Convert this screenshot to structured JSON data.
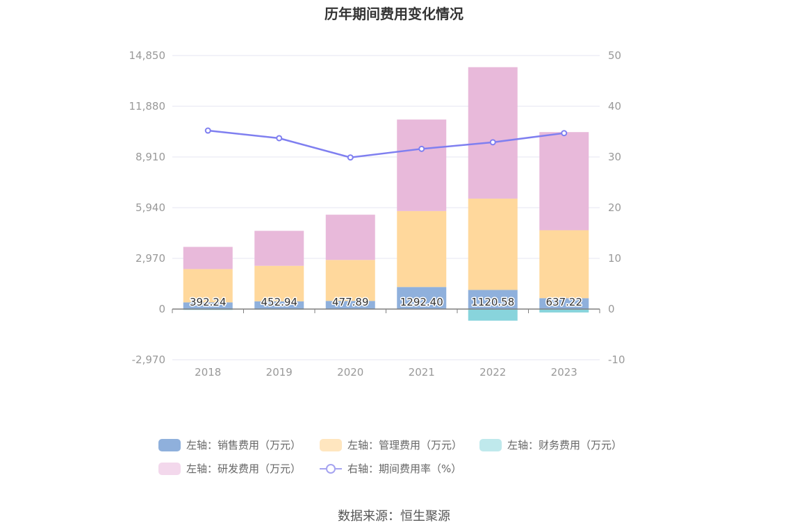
{
  "title": "历年期间费用变化情况",
  "source": "数据来源：恒生聚源",
  "colors": {
    "sales": "#8fb0dc",
    "admin": "#ffd89c",
    "finance": "#88d4dc",
    "rd": "#e8b9da",
    "rate": "#7f7ff0",
    "grid": "#e4e6f2",
    "axis": "#7f7f7f",
    "tick": "#999999"
  },
  "legend": [
    {
      "label": "左轴：销售费用（万元）",
      "swatch": "#8fb0dc",
      "kind": "bar"
    },
    {
      "label": "左轴：管理费用（万元）",
      "swatch": "#ffe6bf",
      "kind": "bar"
    },
    {
      "label": "左轴：财务费用（万元）",
      "swatch": "#bfe9ec",
      "kind": "bar"
    },
    {
      "label": "左轴：研发费用（万元）",
      "swatch": "#f3d8ec",
      "kind": "bar"
    },
    {
      "label": "右轴：期间费用率（%）",
      "swatch": "#a5a3f0",
      "kind": "line"
    }
  ],
  "chart_data": {
    "type": "bar",
    "stacked": true,
    "categories": [
      "2018",
      "2019",
      "2020",
      "2021",
      "2022",
      "2023"
    ],
    "series": [
      {
        "name": "左轴：销售费用（万元）",
        "axis": "left",
        "values": [
          392.24,
          452.94,
          477.89,
          1292.4,
          1120.58,
          637.22
        ],
        "labels": [
          "392.24",
          "452.94",
          "477.89",
          "1292.40",
          "1120.58",
          "637.22"
        ]
      },
      {
        "name": "左轴：管理费用（万元）",
        "axis": "left",
        "values": [
          1950,
          2080,
          2400,
          4450,
          5350,
          3980
        ]
      },
      {
        "name": "左轴：财务费用（万元）",
        "axis": "left",
        "values": [
          -50,
          -30,
          -20,
          -10,
          -680,
          -200
        ]
      },
      {
        "name": "左轴：研发费用（万元）",
        "axis": "left",
        "values": [
          1300,
          2050,
          2650,
          5360,
          7700,
          5750
        ]
      },
      {
        "name": "右轴：期间费用率（%）",
        "axis": "right",
        "type": "line",
        "values": [
          35.2,
          33.7,
          29.9,
          31.6,
          32.9,
          34.7
        ]
      }
    ],
    "y_left": {
      "ticks": [
        "14,850",
        "11,880",
        "8,910",
        "5,940",
        "2,970",
        "0",
        "-2,970"
      ],
      "range": [
        -2970,
        14850
      ]
    },
    "y_right": {
      "ticks": [
        "50",
        "40",
        "30",
        "20",
        "10",
        "0",
        "-10"
      ],
      "range": [
        -10,
        50
      ]
    },
    "grid": true,
    "legend_position": "bottom"
  }
}
